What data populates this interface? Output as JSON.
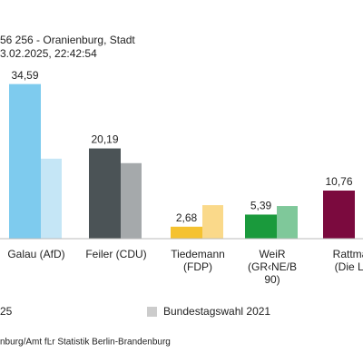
{
  "chart_data": {
    "type": "bar",
    "title": "56 256 - Oranienburg, Stadt",
    "subtitle": "3.02.2025, 22:42:54",
    "categories": [
      [
        "Galau (AfD)"
      ],
      [
        "Feiler (CDU)"
      ],
      [
        "Tiedemann",
        "(FDP)"
      ],
      [
        "WeiR",
        "(GR‹NE/B",
        "90)"
      ],
      [
        "Rattma",
        "(Die Li"
      ]
    ],
    "series": [
      {
        "name": "25",
        "colors": [
          "#7ecbee",
          "#4b5356",
          "#f5c230",
          "#1a9a3c",
          "#7b0a3e"
        ],
        "values": [
          34.59,
          20.19,
          2.68,
          5.39,
          10.76
        ],
        "value_labels": [
          "34,59",
          "20,19",
          "2,68",
          "5,39",
          "10,76"
        ]
      },
      {
        "name": "Bundestagswahl 2021",
        "color": "#cccccc",
        "colors": [
          "#c5e6f6",
          "#a5a9ab",
          "#fad98a",
          "#7fc89a",
          "#d9a8bd"
        ],
        "values": [
          17.9,
          16.9,
          7.5,
          7.3,
          null
        ]
      }
    ],
    "ylim": [
      0,
      40
    ],
    "source": "nburg/Amt fĿr Statistik Berlin-Brandenburg"
  }
}
